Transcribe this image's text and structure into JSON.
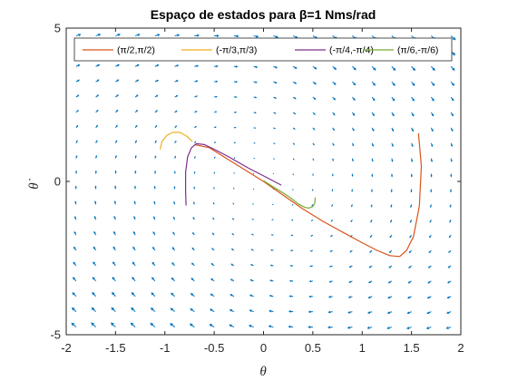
{
  "chart_data": {
    "type": "line",
    "title": "Espaço de estados para β=1 Nms/rad",
    "xlabel": "θ",
    "ylabel": "θ̇",
    "xlim": [
      -2,
      2
    ],
    "ylim": [
      -5,
      5
    ],
    "xticks": [
      "-2",
      "-1.5",
      "-1",
      "-0.5",
      "0",
      "0.5",
      "1",
      "1.5",
      "2"
    ],
    "yticks": [
      "5",
      "0",
      "-5"
    ],
    "legend_location": "top (inside plot, horizontal)",
    "quiver": {
      "color": "#0072BD",
      "x_values": [
        -1.9,
        -1.7,
        -1.5,
        -1.3,
        -1.1,
        -0.9,
        -0.7,
        -0.5,
        -0.3,
        -0.1,
        0.1,
        0.3,
        0.5,
        0.7,
        0.9,
        1.1,
        1.3,
        1.5,
        1.7,
        1.9
      ],
      "y_values": [
        -4.75,
        -4.25,
        -3.75,
        -3.25,
        -2.75,
        -2.25,
        -1.75,
        -1.25,
        -0.75,
        -0.25,
        0.25,
        0.75,
        1.25,
        1.75,
        2.25,
        2.75,
        3.25,
        3.75,
        4.25,
        4.75
      ]
    },
    "series": [
      {
        "name": "(π/2,π/2)",
        "color": "#D95319",
        "x": [
          1.571,
          1.6,
          1.58,
          1.52,
          1.45,
          1.38,
          1.28,
          1.15,
          1.0,
          0.8,
          0.6,
          0.4,
          0.2,
          0.0,
          -0.2,
          -0.4,
          -0.55,
          -0.7
        ],
        "y": [
          1.571,
          0.5,
          -0.8,
          -1.8,
          -2.25,
          -2.45,
          -2.42,
          -2.25,
          -2.0,
          -1.65,
          -1.3,
          -0.9,
          -0.45,
          0.0,
          0.4,
          0.8,
          1.1,
          1.2
        ]
      },
      {
        "name": "(-π/3,π/3)",
        "color": "#EDB120",
        "x": [
          -1.047,
          -1.03,
          -0.98,
          -0.92,
          -0.85,
          -0.78,
          -0.72
        ],
        "y": [
          1.047,
          1.3,
          1.5,
          1.6,
          1.6,
          1.48,
          1.3
        ]
      },
      {
        "name": "(-π/4,-π/4)",
        "color": "#7E2F8E",
        "x": [
          -0.785,
          -0.79,
          -0.79,
          -0.77,
          -0.73,
          -0.68,
          -0.6,
          -0.5,
          -0.35,
          -0.15,
          0.05,
          0.18
        ],
        "y": [
          -0.785,
          -0.3,
          0.3,
          0.8,
          1.1,
          1.23,
          1.2,
          1.05,
          0.8,
          0.43,
          0.1,
          -0.12
        ]
      },
      {
        "name": "(π/6,-π/6)",
        "color": "#77AC30",
        "x": [
          0.524,
          0.52,
          0.5,
          0.46,
          0.42,
          0.35,
          0.28,
          0.2,
          0.1,
          0.0
        ],
        "y": [
          -0.524,
          -0.7,
          -0.82,
          -0.87,
          -0.85,
          -0.73,
          -0.55,
          -0.38,
          -0.18,
          0.02
        ]
      }
    ]
  }
}
